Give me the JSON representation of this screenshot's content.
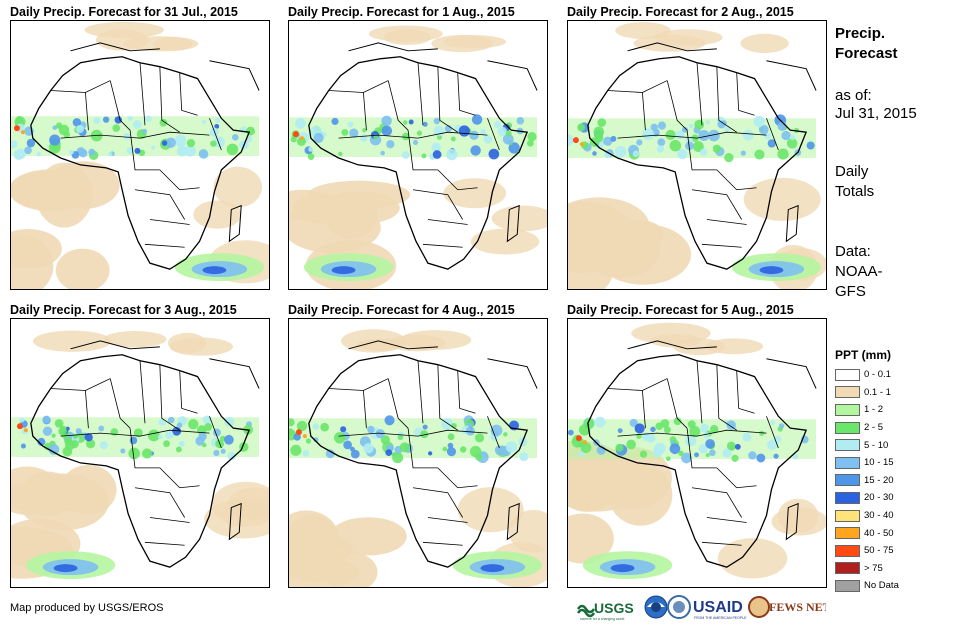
{
  "panels": [
    {
      "title": "Daily Precip. Forecast for 31 Jul., 2015"
    },
    {
      "title": "Daily Precip. Forecast for 1 Aug., 2015"
    },
    {
      "title": "Daily Precip. Forecast for 2 Aug., 2015"
    },
    {
      "title": "Daily Precip. Forecast for 3 Aug., 2015"
    },
    {
      "title": "Daily Precip. Forecast for 4 Aug., 2015"
    },
    {
      "title": "Daily Precip. Forecast for 5 Aug., 2015"
    }
  ],
  "sidebar": {
    "title_line1": "Precip.",
    "title_line2": "Forecast",
    "asof_label": "as of:",
    "asof_date": "Jul 31, 2015",
    "daily_line1": "Daily",
    "daily_line2": "Totals",
    "data_line1": "Data:",
    "data_line2": "NOAA-",
    "data_line3": "GFS"
  },
  "legend": {
    "title": "PPT (mm)",
    "items": [
      {
        "label": "0 - 0.1",
        "color": "#ffffff"
      },
      {
        "label": "0.1 - 1",
        "color": "#f0d9b5"
      },
      {
        "label": "1 - 2",
        "color": "#b4f5a0"
      },
      {
        "label": "2 - 5",
        "color": "#6ae66a"
      },
      {
        "label": "5 - 10",
        "color": "#b0ecf2"
      },
      {
        "label": "10 - 15",
        "color": "#7ec0f0"
      },
      {
        "label": "15 - 20",
        "color": "#4f95ea"
      },
      {
        "label": "20 - 30",
        "color": "#2a62e0"
      },
      {
        "label": "30 - 40",
        "color": "#ffe27a"
      },
      {
        "label": "40 - 50",
        "color": "#ffa51e"
      },
      {
        "label": "50 - 75",
        "color": "#ff4a14"
      },
      {
        "label": "> 75",
        "color": "#b01e1e"
      },
      {
        "label": "No Data",
        "color": "#a0a0a0"
      }
    ]
  },
  "credit": "Map produced by USGS/EROS",
  "logos": {
    "usgs": "USGS",
    "usgs_tagline": "science for a changing world",
    "usaid": "USAID",
    "usaid_tagline": "FROM THE AMERICAN PEOPLE",
    "fews": "FEWS NET"
  }
}
